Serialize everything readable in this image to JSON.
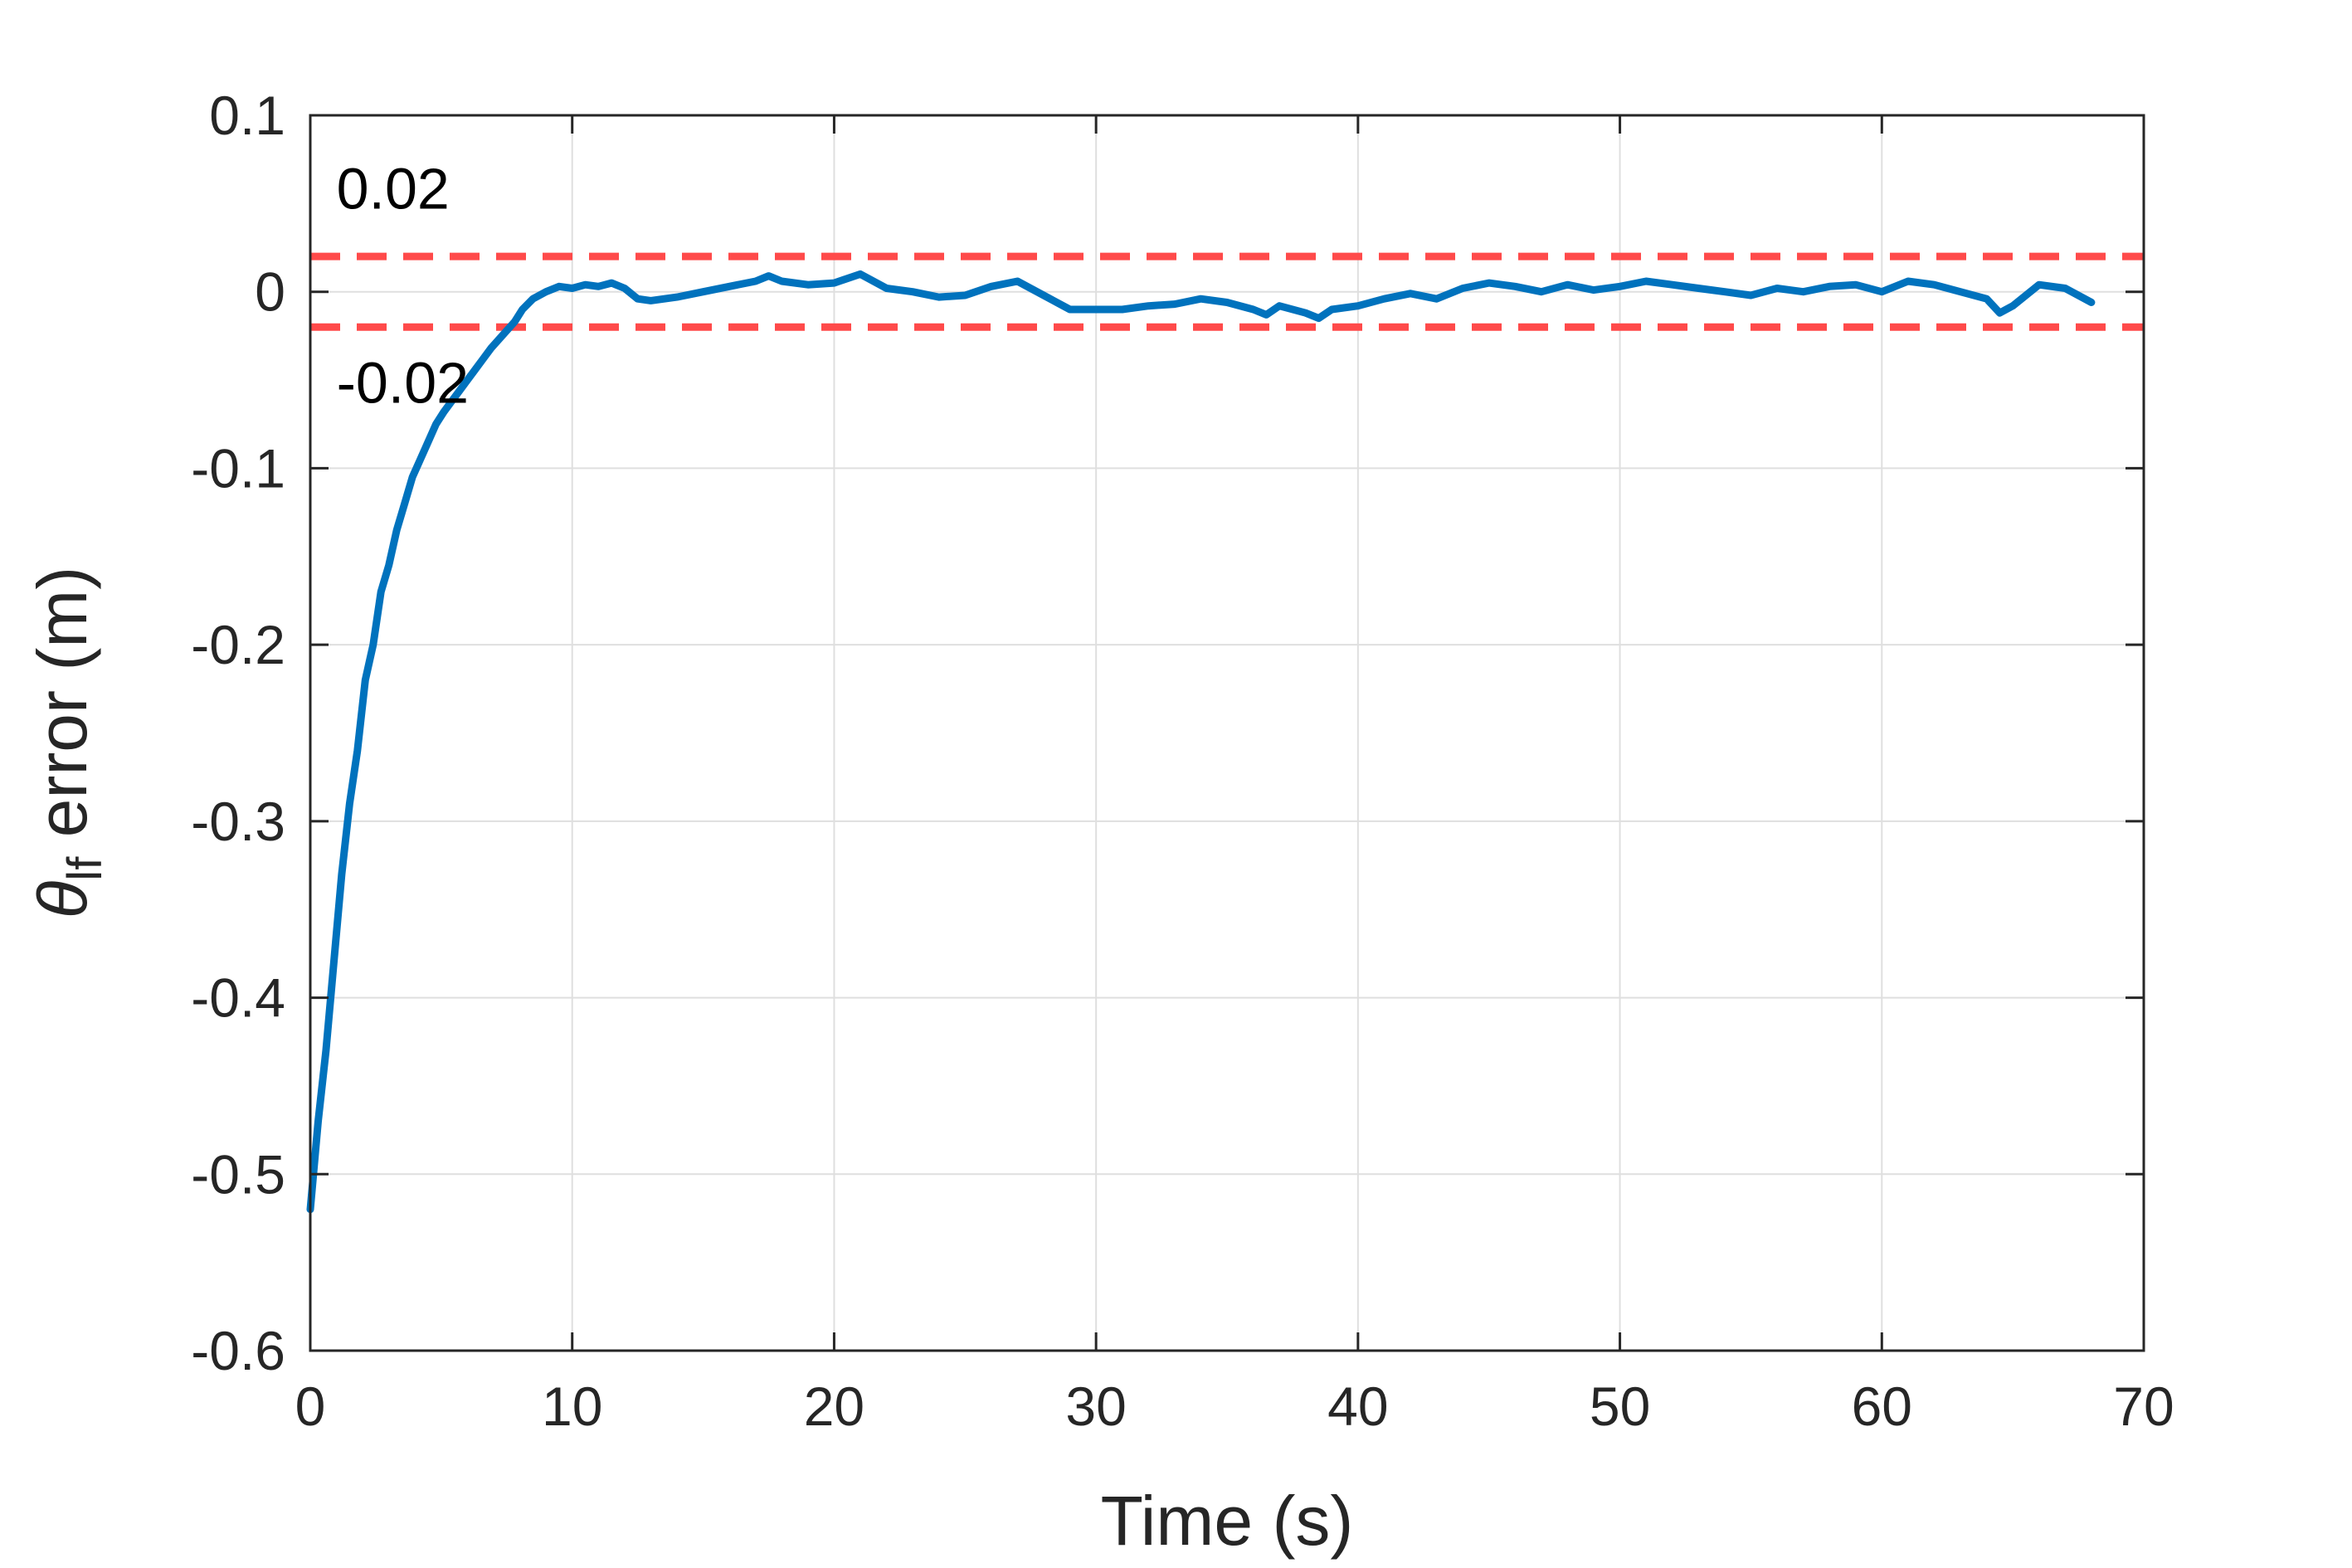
{
  "chart_data": {
    "type": "line",
    "xlabel": "Time (s)",
    "ylabel": {
      "symbol": "θ",
      "subscript": "lf",
      "rest": " error (m)"
    },
    "xlim": [
      0,
      70
    ],
    "ylim": [
      -0.6,
      0.1
    ],
    "xticks": [
      0,
      10,
      20,
      30,
      40,
      50,
      60,
      70
    ],
    "xtick_labels": [
      "0",
      "10",
      "20",
      "30",
      "40",
      "50",
      "60",
      "70"
    ],
    "yticks": [
      0.1,
      0,
      -0.1,
      -0.2,
      -0.3,
      -0.4,
      -0.5,
      -0.6
    ],
    "ytick_labels": [
      "0.1",
      "0",
      "-0.1",
      "-0.2",
      "-0.3",
      "-0.4",
      "-0.5",
      "-0.6"
    ],
    "grid": true,
    "series": [
      {
        "color": "#0072BD",
        "x": [
          0,
          0.3,
          0.6,
          0.9,
          1.2,
          1.5,
          1.8,
          2.1,
          2.4,
          2.7,
          3.0,
          3.3,
          3.6,
          3.9,
          4.2,
          4.5,
          4.8,
          5.1,
          5.4,
          5.7,
          6.0,
          6.3,
          6.6,
          6.9,
          7.2,
          7.5,
          7.8,
          8.1,
          8.5,
          9,
          9.5,
          10,
          10.5,
          11,
          11.5,
          12,
          12.5,
          13,
          14,
          15,
          16,
          17,
          17.5,
          18,
          19,
          20,
          21,
          22,
          23,
          24,
          25,
          26,
          27,
          28,
          29,
          30,
          31,
          32,
          33,
          34,
          35,
          36,
          36.5,
          37,
          38,
          38.5,
          39,
          40,
          41,
          42,
          43,
          44,
          45,
          46,
          47,
          48,
          49,
          50,
          51,
          52,
          53,
          54,
          55,
          56,
          57,
          58,
          59,
          60,
          61,
          62,
          63,
          64,
          64.5,
          65,
          66,
          67,
          68
        ],
        "y": [
          -0.52,
          -0.47,
          -0.43,
          -0.38,
          -0.33,
          -0.29,
          -0.26,
          -0.22,
          -0.2,
          -0.17,
          -0.155,
          -0.135,
          -0.12,
          -0.105,
          -0.095,
          -0.085,
          -0.075,
          -0.068,
          -0.062,
          -0.056,
          -0.05,
          -0.044,
          -0.038,
          -0.032,
          -0.027,
          -0.022,
          -0.017,
          -0.01,
          -0.004,
          0.0,
          0.003,
          0.002,
          0.004,
          0.003,
          0.005,
          0.002,
          -0.004,
          -0.005,
          -0.003,
          0.0,
          0.003,
          0.006,
          0.009,
          0.006,
          0.004,
          0.005,
          0.01,
          0.002,
          0.0,
          -0.003,
          -0.002,
          0.003,
          0.006,
          -0.002,
          -0.01,
          -0.01,
          -0.01,
          -0.008,
          -0.007,
          -0.004,
          -0.006,
          -0.01,
          -0.013,
          -0.008,
          -0.012,
          -0.015,
          -0.01,
          -0.008,
          -0.004,
          -0.001,
          -0.004,
          0.002,
          0.005,
          0.003,
          0.0,
          0.004,
          0.001,
          0.003,
          0.006,
          0.004,
          0.002,
          0.0,
          -0.002,
          0.002,
          0.0,
          0.003,
          0.004,
          0.0,
          0.006,
          0.004,
          0.0,
          -0.004,
          -0.012,
          -0.008,
          0.004,
          0.002,
          -0.006
        ]
      }
    ],
    "reference_lines": [
      {
        "y": 0.02,
        "color": "#FF4A4A",
        "style": "dashed"
      },
      {
        "y": -0.02,
        "color": "#FF4A4A",
        "style": "dashed"
      }
    ],
    "annotations": [
      {
        "text": "0.02",
        "x": 1,
        "y": 0.047
      },
      {
        "text": "-0.02",
        "x": 1,
        "y": -0.063
      }
    ]
  }
}
